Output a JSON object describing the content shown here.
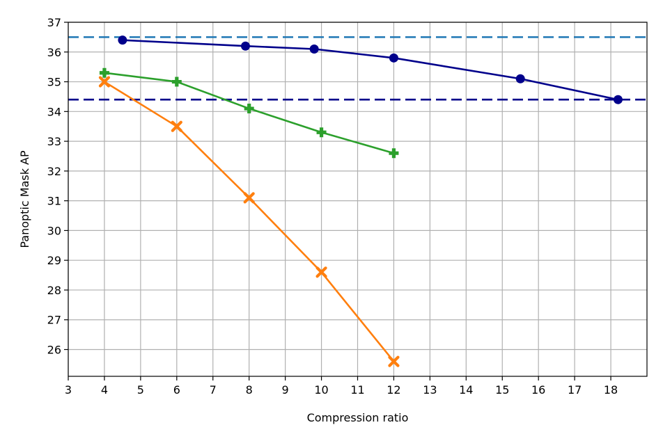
{
  "chart_data": {
    "type": "line",
    "xlabel": "Compression ratio",
    "ylabel": "Panoptic Mask AP",
    "xlim": [
      3,
      19
    ],
    "ylim": [
      25.1,
      37
    ],
    "xticks": [
      "3",
      "4",
      "5",
      "6",
      "7",
      "8",
      "9",
      "10",
      "11",
      "12",
      "13",
      "14",
      "15",
      "16",
      "17",
      "18"
    ],
    "yticks": [
      "26",
      "27",
      "28",
      "29",
      "30",
      "31",
      "32",
      "33",
      "34",
      "35",
      "36",
      "37"
    ],
    "grid": true,
    "legend": "none",
    "series": [
      {
        "color": "#00008b",
        "marker": "circle",
        "x": [
          4.5,
          7.9,
          9.8,
          12.0,
          15.5,
          18.2
        ],
        "y": [
          36.4,
          36.2,
          36.1,
          35.8,
          35.1,
          34.4
        ]
      },
      {
        "color": "#2ca02c",
        "marker": "plus",
        "x": [
          4,
          6,
          8,
          10,
          12
        ],
        "y": [
          35.3,
          35.0,
          34.1,
          33.3,
          32.6
        ]
      },
      {
        "color": "#ff7f0e",
        "marker": "x",
        "x": [
          4,
          6,
          8,
          10,
          12
        ],
        "y": [
          35.0,
          33.5,
          31.1,
          28.6,
          25.6
        ]
      }
    ],
    "reference_lines": [
      {
        "y": 36.5,
        "color": "#1f77b4",
        "style": "dashed"
      },
      {
        "y": 34.4,
        "color": "#00008b",
        "style": "dashed"
      }
    ]
  }
}
